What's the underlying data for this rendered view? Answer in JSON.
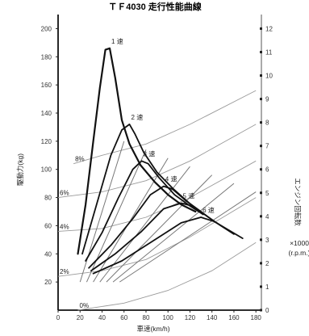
{
  "chart_data": {
    "type": "line",
    "title": "ＴＦ4030 走行性能曲線",
    "xlabel": "車速(km/h)",
    "ylabel": "駆動力(kg)",
    "y2label": "エンジン回転数 ×1000 (r.p.m.)",
    "xlim": [
      0,
      185
    ],
    "ylim": [
      0,
      210
    ],
    "y2lim": [
      0,
      12.6
    ],
    "x_ticks": [
      "0",
      "20",
      "40",
      "60",
      "80",
      "100",
      "120",
      "140",
      "160",
      "180"
    ],
    "y_ticks": [
      "20",
      "40",
      "60",
      "80",
      "100",
      "120",
      "140",
      "160",
      "180",
      "200"
    ],
    "y2_ticks": [
      "0",
      "1",
      "2",
      "3",
      "4",
      "5",
      "6",
      "7",
      "8",
      "9",
      "10",
      "11",
      "12"
    ],
    "grid": false,
    "series": [
      {
        "name": "1 速",
        "x": [
          18,
          25,
          32,
          38,
          43,
          47,
          52,
          58,
          65,
          75,
          88,
          100,
          112,
          125
        ],
        "y": [
          40,
          75,
          120,
          158,
          185,
          186,
          165,
          135,
          118,
          103,
          91,
          82,
          75,
          70
        ]
      },
      {
        "name": "2 速",
        "x": [
          22,
          35,
          48,
          58,
          65,
          70,
          78,
          90,
          105,
          118,
          128
        ],
        "y": [
          40,
          75,
          110,
          128,
          132,
          125,
          112,
          98,
          86,
          77,
          70
        ]
      },
      {
        "name": "3 速",
        "x": [
          25,
          40,
          55,
          68,
          76,
          82,
          92,
          106,
          120,
          132
        ],
        "y": [
          35,
          55,
          80,
          100,
          106,
          104,
          94,
          82,
          74,
          68
        ]
      },
      {
        "name": "4 速",
        "x": [
          28,
          48,
          68,
          84,
          96,
          104,
          116,
          130,
          142
        ],
        "y": [
          30,
          46,
          65,
          82,
          88,
          86,
          78,
          70,
          63
        ]
      },
      {
        "name": "5 速",
        "x": [
          30,
          52,
          76,
          96,
          112,
          122,
          135,
          148,
          160
        ],
        "y": [
          28,
          40,
          56,
          72,
          76,
          74,
          67,
          60,
          54
        ]
      },
      {
        "name": "6 速",
        "x": [
          32,
          58,
          86,
          112,
          130,
          142,
          155,
          168
        ],
        "y": [
          26,
          35,
          49,
          62,
          66,
          63,
          57,
          51
        ]
      }
    ],
    "load_lines": [
      {
        "name": "0%",
        "x": [
          18,
          60,
          100,
          140,
          180
        ],
        "y": [
          0,
          5,
          14,
          28,
          48
        ]
      },
      {
        "name": "2%",
        "x": [
          0,
          40,
          80,
          120,
          180
        ],
        "y": [
          24,
          28,
          36,
          52,
          80
        ]
      },
      {
        "name": "4%",
        "x": [
          0,
          40,
          80,
          120,
          180
        ],
        "y": [
          56,
          58,
          66,
          80,
          106
        ]
      },
      {
        "name": "6%",
        "x": [
          0,
          40,
          80,
          120,
          180
        ],
        "y": [
          80,
          84,
          92,
          106,
          132
        ]
      },
      {
        "name": "8%",
        "x": [
          14,
          40,
          80,
          120,
          180
        ],
        "y": [
          104,
          110,
          118,
          132,
          156
        ]
      }
    ],
    "curve_labels": [
      "1 速",
      "2 速",
      "3 速",
      "4 速",
      "5 速",
      "6 速"
    ],
    "load_labels": [
      "0%",
      "2%",
      "4%",
      "6%",
      "8%"
    ],
    "side_labels": [
      "エンジン回転数",
      "×1000",
      "(r.p.m.)"
    ]
  }
}
